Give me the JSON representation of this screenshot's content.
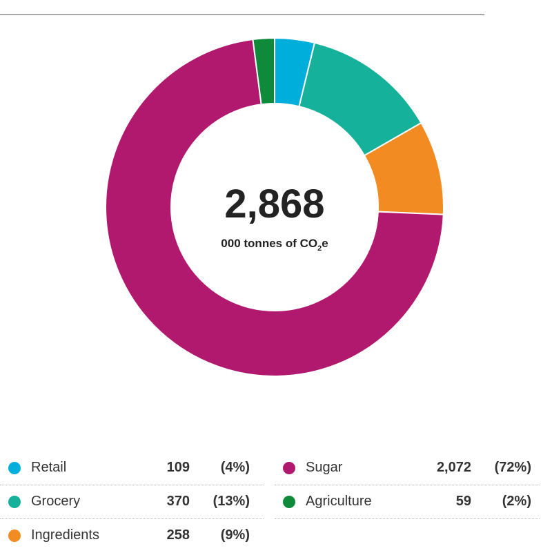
{
  "chart_data": {
    "type": "pie",
    "donut": true,
    "center": {
      "total": "2,868",
      "unit": "000 tonnes of CO",
      "unit_sub": "2",
      "unit_suffix": "e"
    },
    "slices": [
      {
        "label": "Retail",
        "value": 109,
        "value_text": "109",
        "pct_text": "(4%)",
        "color": "#00aedc"
      },
      {
        "label": "Grocery",
        "value": 370,
        "value_text": "370",
        "pct_text": "(13%)",
        "color": "#16b19a"
      },
      {
        "label": "Ingredients",
        "value": 258,
        "value_text": "258",
        "pct_text": "(9%)",
        "color": "#f28c22"
      },
      {
        "label": "Sugar",
        "value": 2072,
        "value_text": "2,072",
        "pct_text": "(72%)",
        "color": "#b0196d"
      },
      {
        "label": "Agriculture",
        "value": 59,
        "value_text": "59",
        "pct_text": "(2%)",
        "color": "#0f8a3a"
      }
    ],
    "legend_placement": "bottom"
  }
}
